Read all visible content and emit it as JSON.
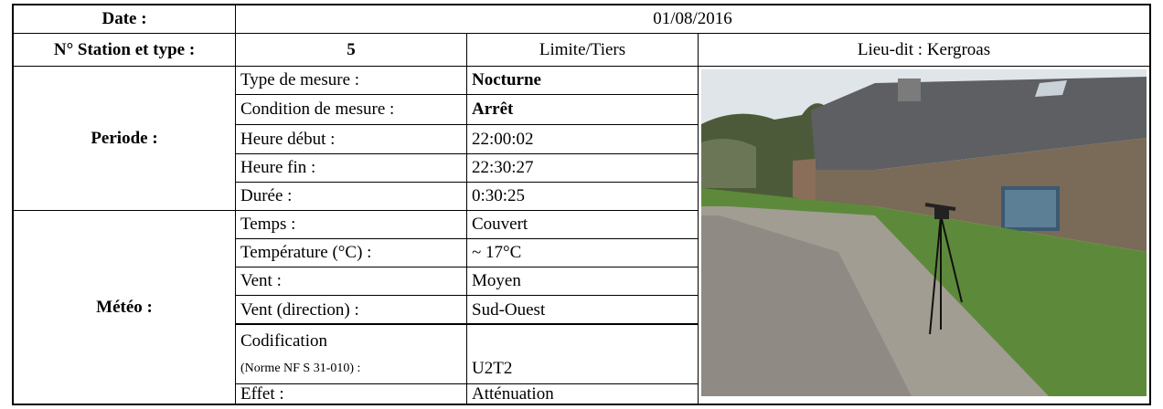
{
  "header": {
    "date_label": "Date :",
    "date": "01/08/2016"
  },
  "station": {
    "label": "N° Station et type :",
    "number": "5",
    "type": "Limite/Tiers",
    "lieu": "Lieu-dit : Kergroas"
  },
  "periode": {
    "label": "Periode :",
    "rows": [
      [
        "Type de mesure :",
        "Nocturne"
      ],
      [
        "Condition de mesure :",
        "Arrêt"
      ],
      [
        "Heure début :",
        "22:00:02"
      ],
      [
        "Heure fin :",
        "22:30:27"
      ],
      [
        "Durée :",
        "0:30:25"
      ]
    ]
  },
  "meteo": {
    "label": "Météo :",
    "rows": [
      [
        "Temps :",
        "Couvert"
      ],
      [
        "Température (°C) :",
        "~ 17°C"
      ],
      [
        "Vent :",
        "Moyen"
      ],
      [
        "Vent (direction) :",
        "Sud-Ouest"
      ]
    ],
    "codification": {
      "label_line1": "Codification",
      "label_line2": "(Norme NF S 31-010) :",
      "value": "U2T2"
    },
    "effet": {
      "label": "Effet :",
      "value": "Atténuation"
    }
  }
}
